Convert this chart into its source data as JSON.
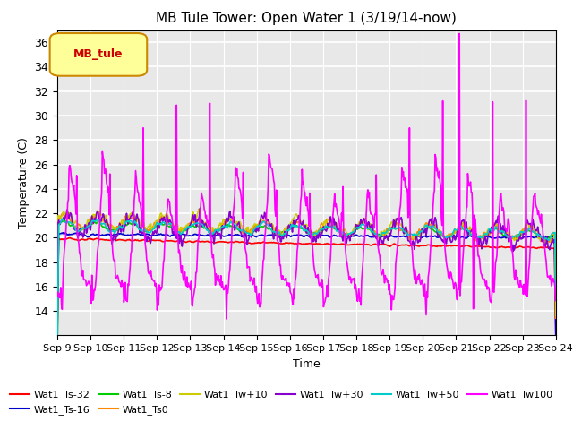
{
  "title": "MB Tule Tower: Open Water 1 (3/19/14-now)",
  "xlabel": "Time",
  "ylabel": "Temperature (C)",
  "ylim": [
    12,
    37
  ],
  "yticks": [
    14,
    16,
    18,
    20,
    22,
    24,
    26,
    28,
    30,
    32,
    34,
    36
  ],
  "xtick_labels": [
    "Sep 9",
    "Sep 10",
    "Sep 11",
    "Sep 12",
    "Sep 13",
    "Sep 14",
    "Sep 15",
    "Sep 16",
    "Sep 17",
    "Sep 18",
    "Sep 19",
    "Sep 20",
    "Sep 21",
    "Sep 22",
    "Sep 23",
    "Sep 24"
  ],
  "background_color": "#e8e8e8",
  "series": [
    {
      "label": "Wat1_Ts-32",
      "color": "#ff0000"
    },
    {
      "label": "Wat1_Ts-16",
      "color": "#0000cc"
    },
    {
      "label": "Wat1_Ts-8",
      "color": "#00cc00"
    },
    {
      "label": "Wat1_Ts0",
      "color": "#ff8800"
    },
    {
      "label": "Wat1_Tw+10",
      "color": "#cccc00"
    },
    {
      "label": "Wat1_Tw+30",
      "color": "#8800cc"
    },
    {
      "label": "Wat1_Tw+50",
      "color": "#00cccc"
    },
    {
      "label": "Wat1_Tw100",
      "color": "#ff00ff"
    }
  ],
  "legend_box_color": "#ffff99",
  "legend_box_edge": "#cc8800",
  "legend_label": "MB_tule",
  "legend_label_color": "#cc0000",
  "n_days": 15,
  "pts_per_day": 48
}
